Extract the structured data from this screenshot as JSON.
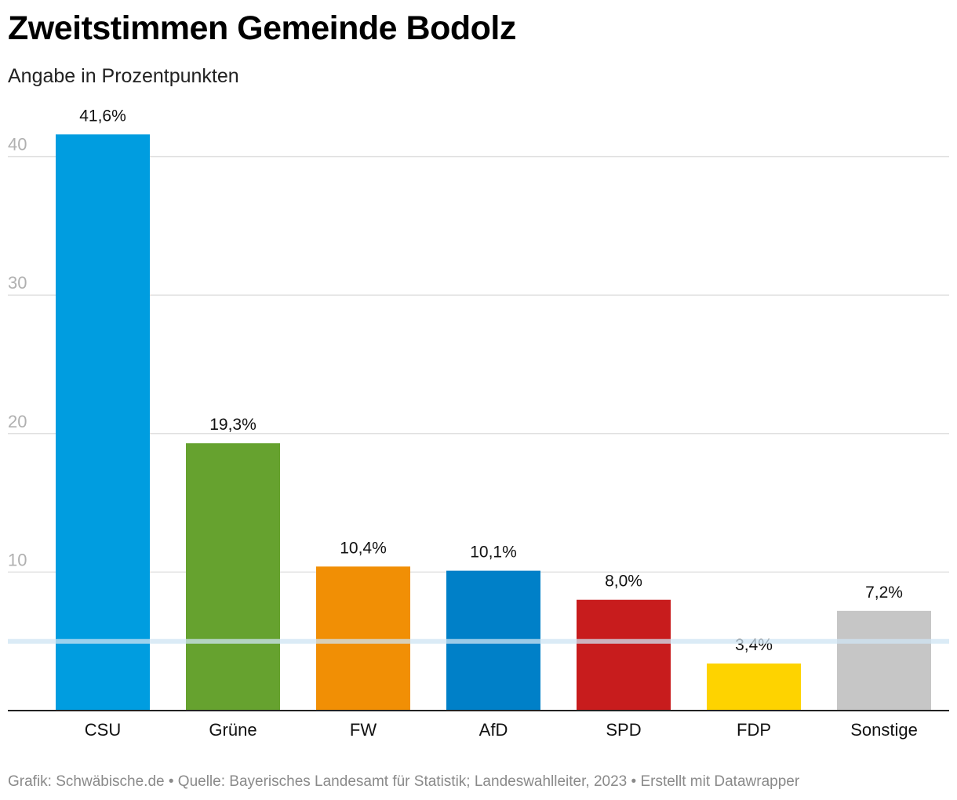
{
  "title": "Zweitstimmen Gemeinde Bodolz",
  "subtitle": "Angabe in Prozentpunkten",
  "footer": "Grafik: Schwäbische.de • Quelle: Bayerisches Landesamt für Statistik; Landeswahlleiter, 2023 • Erstellt mit Datawrapper",
  "chart_data": {
    "type": "bar",
    "title": "Zweitstimmen Gemeinde Bodolz",
    "subtitle": "Angabe in Prozentpunkten",
    "categories": [
      "CSU",
      "Grüne",
      "FW",
      "AfD",
      "SPD",
      "FDP",
      "Sonstige"
    ],
    "values": [
      41.6,
      19.3,
      10.4,
      10.1,
      8.0,
      3.4,
      7.2
    ],
    "value_labels": [
      "41,6%",
      "19,3%",
      "10,4%",
      "10,1%",
      "8,0%",
      "3,4%",
      "7,2%"
    ],
    "colors": [
      "#009de0",
      "#66a22f",
      "#f18f05",
      "#0080c8",
      "#c81c1d",
      "#fed300",
      "#c6c6c6"
    ],
    "y_ticks": [
      10,
      20,
      30,
      40
    ],
    "y_tick_labels": [
      "10",
      "20",
      "30",
      "40"
    ],
    "ylim": [
      0,
      40
    ],
    "reference_line": 5,
    "grid": true,
    "legend": "none",
    "xlabel": "",
    "ylabel": ""
  }
}
